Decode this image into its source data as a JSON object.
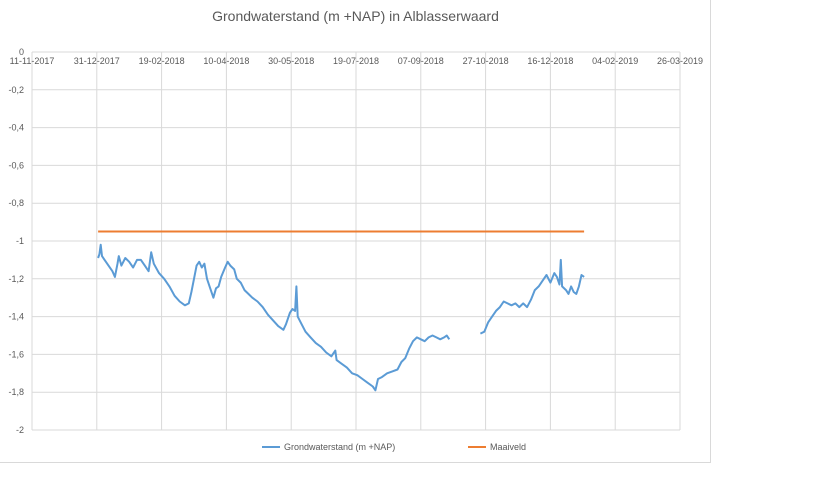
{
  "chart_data": {
    "type": "line",
    "title": "Grondwaterstand (m +NAP) in Alblasserwaard",
    "xlabel": "",
    "ylabel": "",
    "x_tick_labels": [
      "11-11-2017",
      "31-12-2017",
      "19-02-2018",
      "10-04-2018",
      "30-05-2018",
      "19-07-2018",
      "07-09-2018",
      "27-10-2018",
      "16-12-2018",
      "04-02-2019",
      "26-03-2019"
    ],
    "x_range": [
      "2017-11-11",
      "2019-03-26"
    ],
    "y_tick_labels": [
      "0",
      "-0,2",
      "-0,4",
      "-0,6",
      "-0,8",
      "-1",
      "-1,2",
      "-1,4",
      "-1,6",
      "-1,8",
      "-2"
    ],
    "ylim": [
      -2,
      0
    ],
    "grid": true,
    "legend_position": "bottom",
    "series": [
      {
        "name": "Grondwaterstand (m +NAP)",
        "color": "#5b9bd5",
        "segments": [
          [
            [
              "2018-01-01",
              -1.09
            ],
            [
              "2018-01-02",
              -1.07
            ],
            [
              "2018-01-03",
              -1.02
            ],
            [
              "2018-01-04",
              -1.08
            ],
            [
              "2018-01-06",
              -1.1
            ],
            [
              "2018-01-09",
              -1.13
            ],
            [
              "2018-01-12",
              -1.16
            ],
            [
              "2018-01-14",
              -1.19
            ],
            [
              "2018-01-16",
              -1.12
            ],
            [
              "2018-01-17",
              -1.08
            ],
            [
              "2018-01-19",
              -1.13
            ],
            [
              "2018-01-22",
              -1.09
            ],
            [
              "2018-01-25",
              -1.11
            ],
            [
              "2018-01-28",
              -1.14
            ],
            [
              "2018-01-31",
              -1.1
            ],
            [
              "2018-02-03",
              -1.1
            ],
            [
              "2018-02-06",
              -1.13
            ],
            [
              "2018-02-09",
              -1.16
            ],
            [
              "2018-02-11",
              -1.06
            ],
            [
              "2018-02-13",
              -1.12
            ],
            [
              "2018-02-17",
              -1.17
            ],
            [
              "2018-02-21",
              -1.2
            ],
            [
              "2018-02-25",
              -1.24
            ],
            [
              "2018-03-01",
              -1.29
            ],
            [
              "2018-03-05",
              -1.32
            ],
            [
              "2018-03-09",
              -1.34
            ],
            [
              "2018-03-12",
              -1.33
            ],
            [
              "2018-03-14",
              -1.27
            ],
            [
              "2018-03-16",
              -1.2
            ],
            [
              "2018-03-18",
              -1.13
            ],
            [
              "2018-03-20",
              -1.11
            ],
            [
              "2018-03-22",
              -1.14
            ],
            [
              "2018-03-24",
              -1.12
            ],
            [
              "2018-03-26",
              -1.2
            ],
            [
              "2018-03-29",
              -1.26
            ],
            [
              "2018-03-31",
              -1.3
            ],
            [
              "2018-04-02",
              -1.25
            ],
            [
              "2018-04-04",
              -1.24
            ],
            [
              "2018-04-06",
              -1.19
            ],
            [
              "2018-04-09",
              -1.14
            ],
            [
              "2018-04-11",
              -1.11
            ],
            [
              "2018-04-13",
              -1.13
            ],
            [
              "2018-04-16",
              -1.15
            ],
            [
              "2018-04-18",
              -1.2
            ],
            [
              "2018-04-21",
              -1.22
            ],
            [
              "2018-04-24",
              -1.26
            ],
            [
              "2018-04-27",
              -1.28
            ],
            [
              "2018-04-30",
              -1.3
            ],
            [
              "2018-05-04",
              -1.32
            ],
            [
              "2018-05-08",
              -1.35
            ],
            [
              "2018-05-12",
              -1.39
            ],
            [
              "2018-05-16",
              -1.42
            ],
            [
              "2018-05-20",
              -1.45
            ],
            [
              "2018-05-24",
              -1.47
            ],
            [
              "2018-05-26",
              -1.44
            ],
            [
              "2018-05-29",
              -1.38
            ],
            [
              "2018-05-31",
              -1.36
            ],
            [
              "2018-06-02",
              -1.37
            ],
            [
              "2018-06-03",
              -1.24
            ],
            [
              "2018-06-04",
              -1.4
            ],
            [
              "2018-06-07",
              -1.44
            ],
            [
              "2018-06-10",
              -1.48
            ],
            [
              "2018-06-14",
              -1.51
            ],
            [
              "2018-06-18",
              -1.54
            ],
            [
              "2018-06-22",
              -1.56
            ],
            [
              "2018-06-26",
              -1.59
            ],
            [
              "2018-06-30",
              -1.61
            ],
            [
              "2018-07-03",
              -1.58
            ],
            [
              "2018-07-04",
              -1.63
            ],
            [
              "2018-07-08",
              -1.65
            ],
            [
              "2018-07-12",
              -1.67
            ],
            [
              "2018-07-16",
              -1.7
            ],
            [
              "2018-07-20",
              -1.71
            ],
            [
              "2018-07-24",
              -1.73
            ],
            [
              "2018-07-28",
              -1.75
            ],
            [
              "2018-08-01",
              -1.77
            ],
            [
              "2018-08-03",
              -1.79
            ],
            [
              "2018-08-05",
              -1.73
            ],
            [
              "2018-08-08",
              -1.72
            ],
            [
              "2018-08-12",
              -1.7
            ],
            [
              "2018-08-16",
              -1.69
            ],
            [
              "2018-08-20",
              -1.68
            ],
            [
              "2018-08-23",
              -1.64
            ],
            [
              "2018-08-26",
              -1.62
            ],
            [
              "2018-08-29",
              -1.57
            ],
            [
              "2018-09-01",
              -1.53
            ],
            [
              "2018-09-04",
              -1.51
            ],
            [
              "2018-09-07",
              -1.52
            ],
            [
              "2018-09-10",
              -1.53
            ],
            [
              "2018-09-13",
              -1.51
            ],
            [
              "2018-09-16",
              -1.5
            ],
            [
              "2018-09-19",
              -1.51
            ],
            [
              "2018-09-22",
              -1.52
            ],
            [
              "2018-09-25",
              -1.51
            ],
            [
              "2018-09-27",
              -1.5
            ],
            [
              "2018-09-29",
              -1.52
            ]
          ],
          [
            [
              "2018-10-23",
              -1.49
            ],
            [
              "2018-10-26",
              -1.48
            ],
            [
              "2018-10-29",
              -1.43
            ],
            [
              "2018-11-01",
              -1.4
            ],
            [
              "2018-11-04",
              -1.37
            ],
            [
              "2018-11-07",
              -1.35
            ],
            [
              "2018-11-10",
              -1.32
            ],
            [
              "2018-11-13",
              -1.33
            ],
            [
              "2018-11-16",
              -1.34
            ],
            [
              "2018-11-19",
              -1.33
            ],
            [
              "2018-11-22",
              -1.35
            ],
            [
              "2018-11-25",
              -1.33
            ],
            [
              "2018-11-28",
              -1.35
            ],
            [
              "2018-12-01",
              -1.31
            ],
            [
              "2018-12-04",
              -1.26
            ],
            [
              "2018-12-07",
              -1.24
            ],
            [
              "2018-12-10",
              -1.21
            ],
            [
              "2018-12-13",
              -1.18
            ],
            [
              "2018-12-16",
              -1.22
            ],
            [
              "2018-12-19",
              -1.17
            ],
            [
              "2018-12-21",
              -1.19
            ],
            [
              "2018-12-23",
              -1.23
            ],
            [
              "2018-12-24",
              -1.1
            ],
            [
              "2018-12-25",
              -1.24
            ],
            [
              "2018-12-28",
              -1.26
            ],
            [
              "2018-12-30",
              -1.28
            ],
            [
              "2019-01-01",
              -1.24
            ],
            [
              "2019-01-03",
              -1.27
            ],
            [
              "2019-01-05",
              -1.28
            ],
            [
              "2019-01-07",
              -1.24
            ],
            [
              "2019-01-09",
              -1.18
            ],
            [
              "2019-01-11",
              -1.19
            ]
          ]
        ]
      },
      {
        "name": "Maaiveld",
        "color": "#ed7d31",
        "segments": [
          [
            [
              "2018-01-01",
              -0.95
            ],
            [
              "2019-01-11",
              -0.95
            ]
          ]
        ]
      }
    ]
  }
}
